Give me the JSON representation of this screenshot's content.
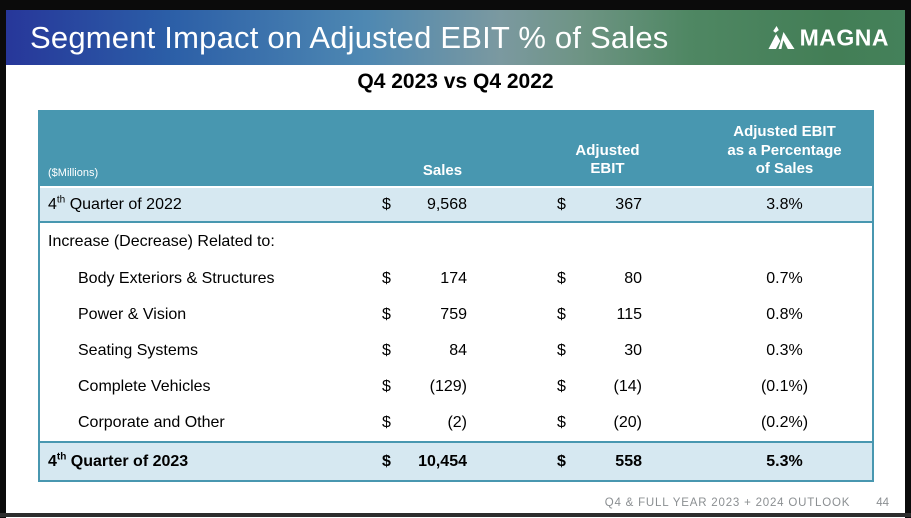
{
  "slide": {
    "title": "Segment Impact on Adjusted EBIT % of Sales",
    "subtitle": "Q4 2023 vs Q4 2022",
    "logo_text": "MAGNA",
    "footer": {
      "label": "Q4 & FULL YEAR 2023 + 2024 OUTLOOK",
      "page": "44"
    }
  },
  "colors": {
    "header_teal": "#4897b0",
    "highlight_row_blue": "#d6e8f1",
    "banner_gradient_left": "#27379a",
    "banner_gradient_right": "#44815a",
    "bottom_bar": "#2d2d2d"
  },
  "table": {
    "units_label": "($Millions)",
    "header": {
      "sales": "Sales",
      "ebit_line1": "Adjusted",
      "ebit_line2": "EBIT",
      "pct_line1": "Adjusted EBIT",
      "pct_line2": "as a Percentage",
      "pct_line3": "of Sales"
    },
    "rows": [
      {
        "type": "highlight-2022",
        "label_parts": [
          "4",
          "th",
          " Quarter of 2022"
        ],
        "dollar1": "$",
        "sales": "9,568",
        "dollar2": "$",
        "ebit": "367",
        "pct": "3.8%"
      },
      {
        "type": "section",
        "label": "Increase (Decrease) Related to:",
        "dollar1": "",
        "sales": "",
        "dollar2": "",
        "ebit": "",
        "pct": ""
      },
      {
        "type": "indent",
        "label": "Body Exteriors & Structures",
        "dollar1": "$",
        "sales": "174",
        "dollar2": "$",
        "ebit": "80",
        "pct": "0.7%"
      },
      {
        "type": "indent",
        "label": "Power & Vision",
        "dollar1": "$",
        "sales": "759",
        "dollar2": "$",
        "ebit": "115",
        "pct": "0.8%"
      },
      {
        "type": "indent",
        "label": "Seating Systems",
        "dollar1": "$",
        "sales": "84",
        "dollar2": "$",
        "ebit": "30",
        "pct": "0.3%"
      },
      {
        "type": "indent",
        "label": "Complete Vehicles",
        "dollar1": "$",
        "sales": "(129)",
        "dollar2": "$",
        "ebit": "(14)",
        "pct": "(0.1%)"
      },
      {
        "type": "indent",
        "label": "Corporate and Other",
        "dollar1": "$",
        "sales": "(2)",
        "dollar2": "$",
        "ebit": "(20)",
        "pct": "(0.2%)"
      },
      {
        "type": "highlight-2023",
        "label_parts": [
          "4",
          "th",
          " Quarter of 2023"
        ],
        "dollar1": "$",
        "sales": "10,454",
        "dollar2": "$",
        "ebit": "558",
        "pct": "5.3%"
      }
    ]
  }
}
